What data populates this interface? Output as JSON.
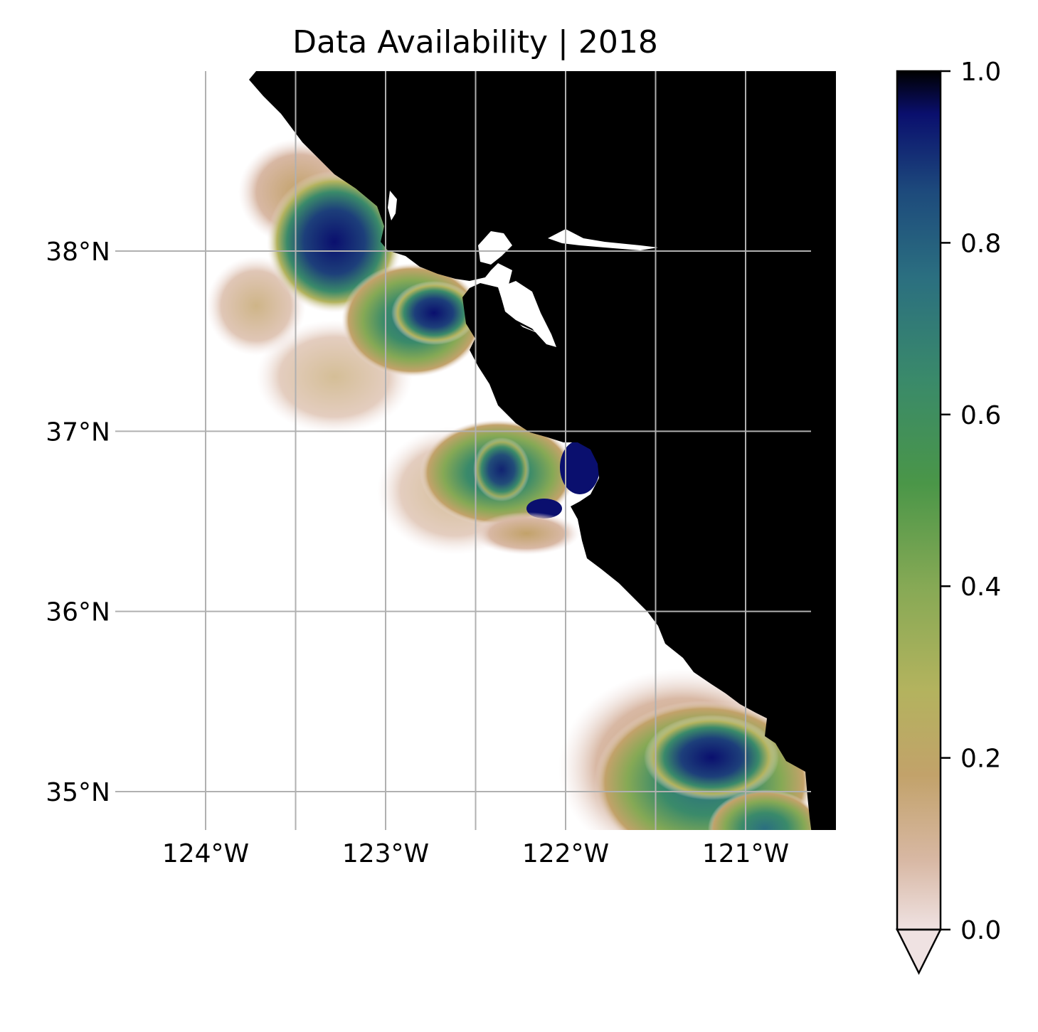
{
  "chart_data": {
    "type": "heatmap",
    "title": "Data Availability | 2018",
    "projection": "map",
    "xlabel": "",
    "ylabel": "",
    "xlim": [
      -124.5,
      -120.5
    ],
    "ylim": [
      34.2,
      38.5
    ],
    "grid": true,
    "x_ticks": [
      {
        "value": -124,
        "label": "124°W"
      },
      {
        "value": -123.5,
        "label": ""
      },
      {
        "value": -123,
        "label": "123°W"
      },
      {
        "value": -122.5,
        "label": ""
      },
      {
        "value": -122,
        "label": "122°W"
      },
      {
        "value": -121.5,
        "label": ""
      },
      {
        "value": -121,
        "label": "121°W"
      }
    ],
    "y_ticks": [
      {
        "value": 38,
        "label": "38°N"
      },
      {
        "value": 37,
        "label": "37°N"
      },
      {
        "value": 36,
        "label": "36°N"
      },
      {
        "value": 35,
        "label": "35°N"
      }
    ],
    "colorbar": {
      "colormap": "gist_earth_r",
      "range": [
        0.0,
        1.0
      ],
      "extend": "min",
      "ticks": [
        {
          "value": 0.0,
          "label": "0.0"
        },
        {
          "value": 0.2,
          "label": "0.2"
        },
        {
          "value": 0.4,
          "label": "0.4"
        },
        {
          "value": 0.6,
          "label": "0.6"
        },
        {
          "value": 0.8,
          "label": "0.8"
        },
        {
          "value": 1.0,
          "label": "1.0"
        }
      ],
      "stops": [
        {
          "value": 0.0,
          "color": "#efe2e2"
        },
        {
          "value": 0.08,
          "color": "#d8b8a4"
        },
        {
          "value": 0.18,
          "color": "#c2a26a"
        },
        {
          "value": 0.28,
          "color": "#b3b35e"
        },
        {
          "value": 0.4,
          "color": "#86a955"
        },
        {
          "value": 0.52,
          "color": "#4a9648"
        },
        {
          "value": 0.64,
          "color": "#3a8a6a"
        },
        {
          "value": 0.76,
          "color": "#2b6f80"
        },
        {
          "value": 0.86,
          "color": "#1d4a7c"
        },
        {
          "value": 0.95,
          "color": "#0a0f6e"
        },
        {
          "value": 1.0,
          "color": "#000000"
        }
      ]
    },
    "land_color": "#000000",
    "regions": [
      {
        "name": "",
        "center": [
          -123.3,
          38.05
        ],
        "availability": 0.95
      },
      {
        "name": "",
        "center": [
          -122.6,
          37.7
        ],
        "availability": 0.98
      },
      {
        "name": "",
        "center": [
          -123.5,
          38.3
        ],
        "availability": 0.15
      },
      {
        "name": "",
        "center": [
          -122.3,
          36.75
        ],
        "availability": 0.8
      },
      {
        "name": "",
        "center": [
          -121.9,
          36.8
        ],
        "availability": 0.99
      },
      {
        "name": "",
        "center": [
          -121.1,
          35.15
        ],
        "availability": 0.97
      },
      {
        "name": "",
        "center": [
          -120.8,
          34.7
        ],
        "availability": 0.75
      }
    ]
  }
}
